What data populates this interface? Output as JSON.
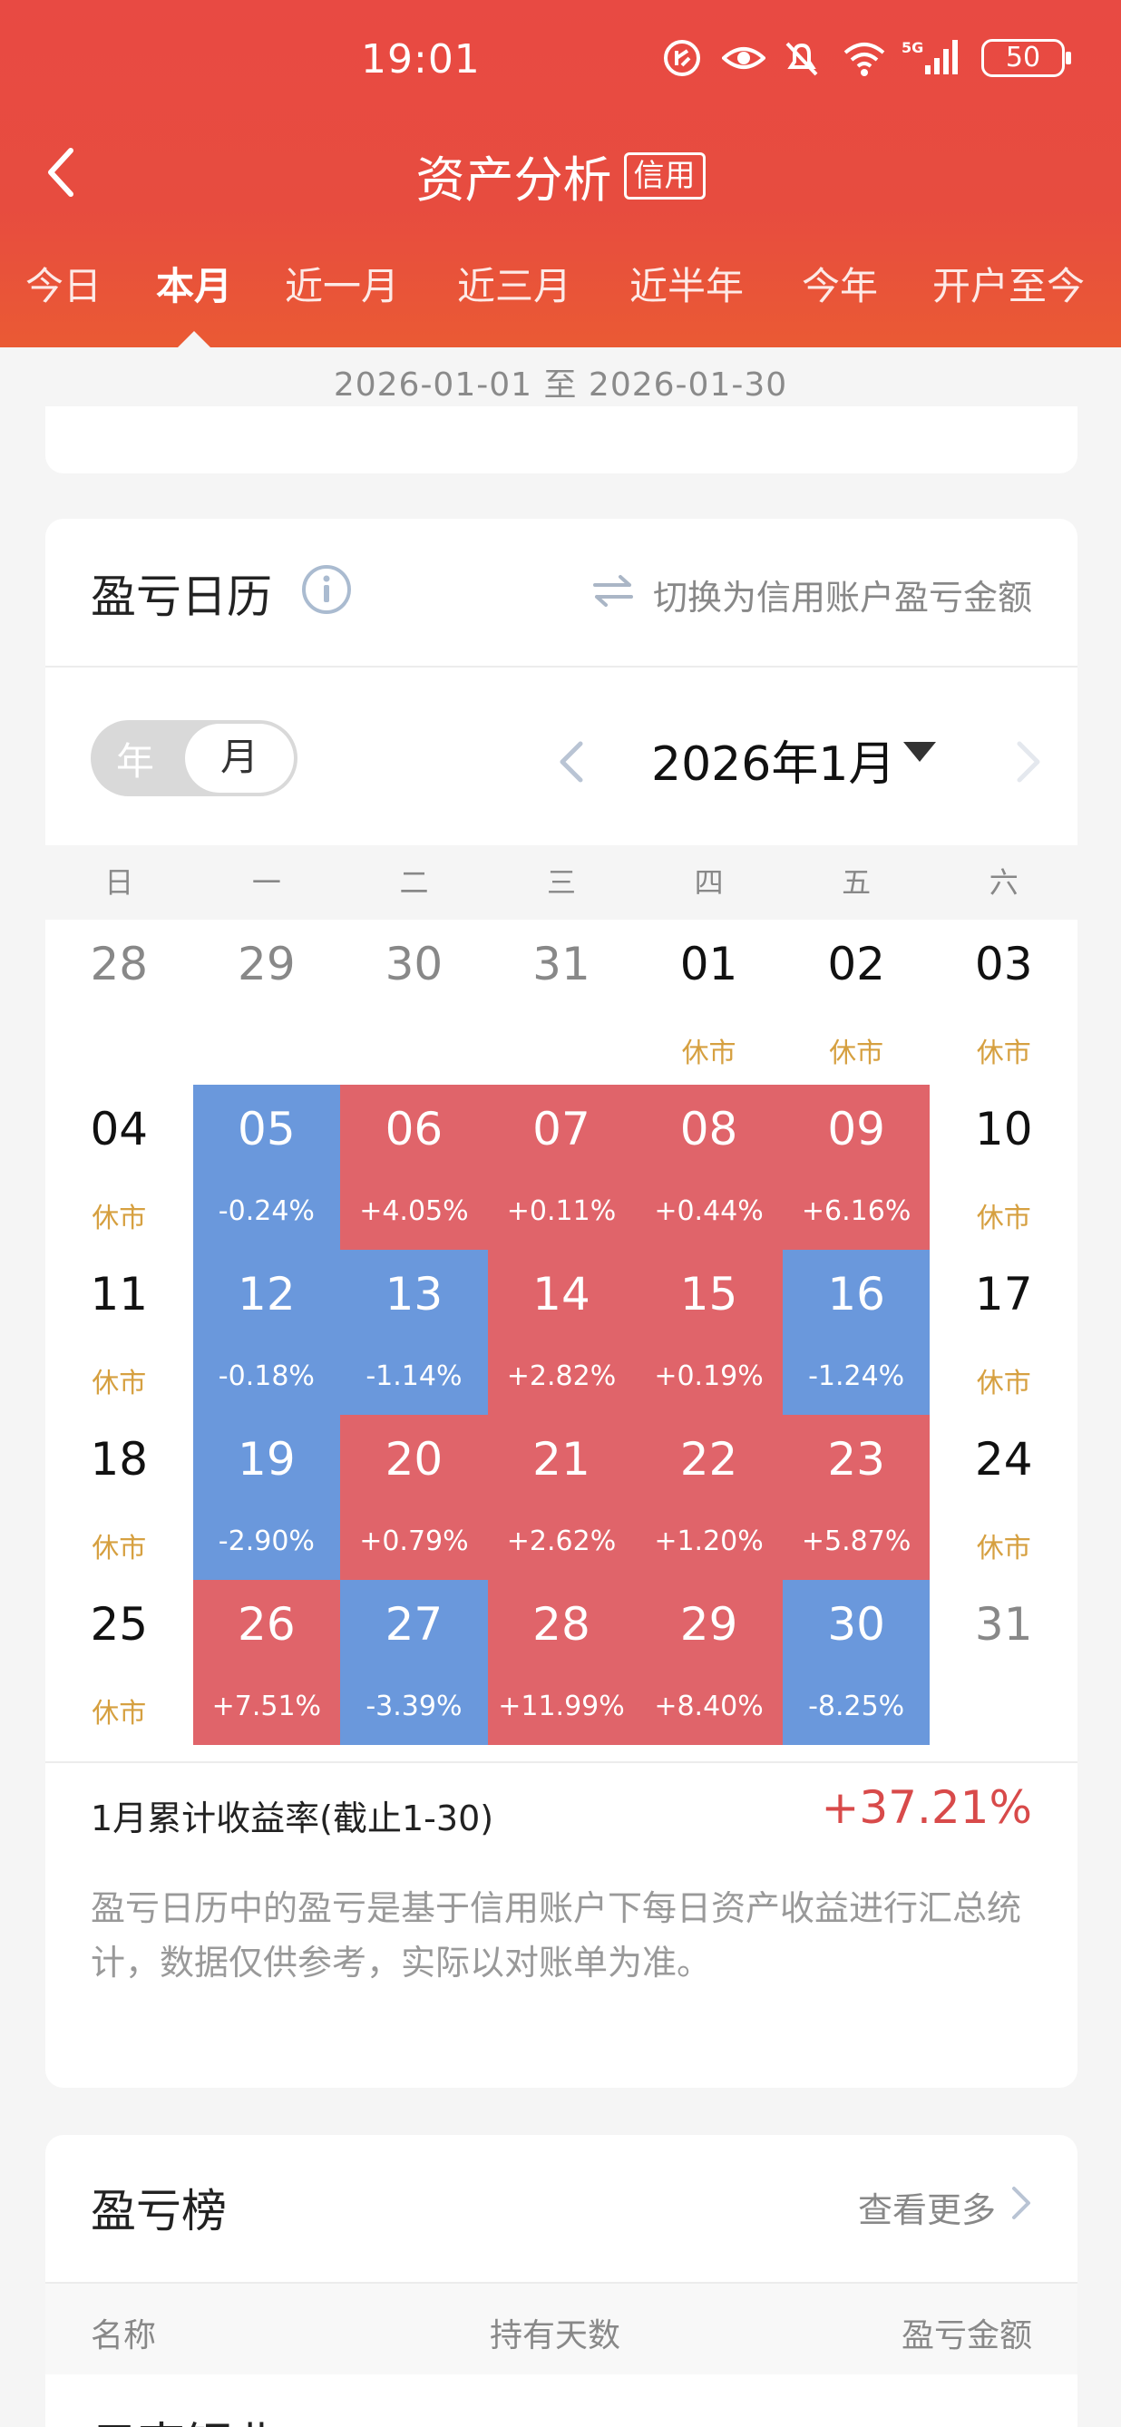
{
  "status_bar": {
    "time": "19:01",
    "battery": "50",
    "network": "5G"
  },
  "nav": {
    "title": "资产分析",
    "tag": "信用"
  },
  "tabs": [
    {
      "label": "今日",
      "active": false
    },
    {
      "label": "本月",
      "active": true
    },
    {
      "label": "近一月",
      "active": false
    },
    {
      "label": "近三月",
      "active": false
    },
    {
      "label": "近半年",
      "active": false
    },
    {
      "label": "今年",
      "active": false
    },
    {
      "label": "开户至今",
      "active": false
    }
  ],
  "date_range": "2026-01-01 至 2026-01-30",
  "calendar": {
    "title": "盈亏日历",
    "switch_label": "切换为信用账户盈亏金额",
    "toggle": {
      "year": "年",
      "month": "月"
    },
    "month_label": "2026年1月",
    "weekdays": [
      "日",
      "一",
      "二",
      "三",
      "四",
      "五",
      "六"
    ],
    "colors": {
      "up": "#e0646a",
      "down": "#6a98dc",
      "closed": "#d6a040"
    },
    "weeks": [
      [
        {
          "day": "28",
          "sub": "",
          "type": "other"
        },
        {
          "day": "29",
          "sub": "",
          "type": "other"
        },
        {
          "day": "30",
          "sub": "",
          "type": "other"
        },
        {
          "day": "31",
          "sub": "",
          "type": "other"
        },
        {
          "day": "01",
          "sub": "休市",
          "type": "closed"
        },
        {
          "day": "02",
          "sub": "休市",
          "type": "closed"
        },
        {
          "day": "03",
          "sub": "休市",
          "type": "closed"
        }
      ],
      [
        {
          "day": "04",
          "sub": "休市",
          "type": "closed"
        },
        {
          "day": "05",
          "sub": "-0.24%",
          "type": "down"
        },
        {
          "day": "06",
          "sub": "+4.05%",
          "type": "up"
        },
        {
          "day": "07",
          "sub": "+0.11%",
          "type": "up"
        },
        {
          "day": "08",
          "sub": "+0.44%",
          "type": "up"
        },
        {
          "day": "09",
          "sub": "+6.16%",
          "type": "up"
        },
        {
          "day": "10",
          "sub": "休市",
          "type": "closed"
        }
      ],
      [
        {
          "day": "11",
          "sub": "休市",
          "type": "closed"
        },
        {
          "day": "12",
          "sub": "-0.18%",
          "type": "down"
        },
        {
          "day": "13",
          "sub": "-1.14%",
          "type": "down"
        },
        {
          "day": "14",
          "sub": "+2.82%",
          "type": "up"
        },
        {
          "day": "15",
          "sub": "+0.19%",
          "type": "up"
        },
        {
          "day": "16",
          "sub": "-1.24%",
          "type": "down"
        },
        {
          "day": "17",
          "sub": "休市",
          "type": "closed"
        }
      ],
      [
        {
          "day": "18",
          "sub": "休市",
          "type": "closed"
        },
        {
          "day": "19",
          "sub": "-2.90%",
          "type": "down"
        },
        {
          "day": "20",
          "sub": "+0.79%",
          "type": "up"
        },
        {
          "day": "21",
          "sub": "+2.62%",
          "type": "up"
        },
        {
          "day": "22",
          "sub": "+1.20%",
          "type": "up"
        },
        {
          "day": "23",
          "sub": "+5.87%",
          "type": "up"
        },
        {
          "day": "24",
          "sub": "休市",
          "type": "closed"
        }
      ],
      [
        {
          "day": "25",
          "sub": "休市",
          "type": "closed"
        },
        {
          "day": "26",
          "sub": "+7.51%",
          "type": "up"
        },
        {
          "day": "27",
          "sub": "-3.39%",
          "type": "down"
        },
        {
          "day": "28",
          "sub": "+11.99%",
          "type": "up"
        },
        {
          "day": "29",
          "sub": "+8.40%",
          "type": "up"
        },
        {
          "day": "30",
          "sub": "-8.25%",
          "type": "down"
        },
        {
          "day": "31",
          "sub": "",
          "type": "other"
        }
      ]
    ],
    "summary_label": "1月累计收益率(截止1-30)",
    "summary_value": "+37.21%",
    "disclaimer": "盈亏日历中的盈亏是基于信用账户下每日资产收益进行汇总统计，数据仅供参考，实际以对账单为准。"
  },
  "ranking": {
    "title": "盈亏榜",
    "more_label": "查看更多",
    "columns": [
      "名称",
      "持有天数",
      "盈亏金额"
    ],
    "first_row_name": "云南铜业"
  }
}
